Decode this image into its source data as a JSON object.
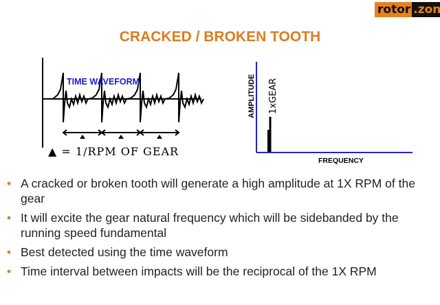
{
  "logo": {
    "part1": "rotor",
    "part2": ".zone"
  },
  "title": "CRACKED / BROKEN  TOOTH",
  "waveform": {
    "label": "TIME WAVEFORM",
    "caption": "▲ = 1/RPM OF GEAR",
    "label_color": "#1a1acc"
  },
  "spectrum": {
    "y_label": "AMPLITUDE",
    "x_label": "FREQUENCY",
    "peak_label": "1xGEAR",
    "axis_color": "#2222cc"
  },
  "bullets": [
    "A cracked or broken tooth will generate a high amplitude at 1X RPM of the gear",
    "It will excite the gear natural frequency which will be sidebanded by the running speed fundamental",
    "Best detected using the time waveform",
    "Time interval between impacts will be the reciprocal of the 1X RPM"
  ],
  "colors": {
    "accent": "#e07b20"
  }
}
